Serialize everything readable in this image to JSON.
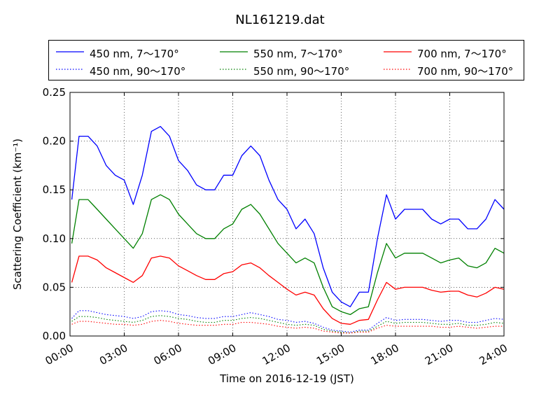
{
  "chart_data": {
    "type": "line",
    "title": "NL161219.dat",
    "xlabel": "Time on 2016-12-19 (JST)",
    "ylabel": "Scattering Coefficient (km⁻¹)",
    "xlim": [
      0,
      24
    ],
    "ylim": [
      0,
      0.25
    ],
    "grid": true,
    "legend_position": "top, above plot, 3 columns",
    "x_tick_labels": [
      "00:00",
      "03:00",
      "06:00",
      "09:00",
      "12:00",
      "15:00",
      "18:00",
      "21:00",
      "24:00"
    ],
    "y_tick_labels": [
      "0.00",
      "0.05",
      "0.10",
      "0.15",
      "0.20",
      "0.25"
    ],
    "x": [
      0.1,
      0.5,
      1.0,
      1.5,
      2.0,
      2.5,
      3.0,
      3.5,
      4.0,
      4.5,
      5.0,
      5.5,
      6.0,
      6.5,
      7.0,
      7.5,
      8.0,
      8.5,
      9.0,
      9.5,
      10.0,
      10.5,
      11.0,
      11.5,
      12.0,
      12.5,
      13.0,
      13.5,
      14.0,
      14.5,
      15.0,
      15.5,
      16.0,
      16.5,
      17.0,
      17.5,
      18.0,
      18.5,
      19.0,
      19.5,
      20.0,
      20.5,
      21.0,
      21.5,
      22.0,
      22.5,
      23.0,
      23.5,
      24.0
    ],
    "series": [
      {
        "name": "450 nm, 7～170°",
        "color": "#0000ff",
        "style": "solid",
        "values": [
          0.14,
          0.205,
          0.205,
          0.195,
          0.175,
          0.165,
          0.16,
          0.135,
          0.165,
          0.21,
          0.215,
          0.205,
          0.18,
          0.17,
          0.155,
          0.15,
          0.15,
          0.165,
          0.165,
          0.185,
          0.195,
          0.185,
          0.16,
          0.14,
          0.13,
          0.11,
          0.12,
          0.105,
          0.07,
          0.045,
          0.035,
          0.03,
          0.045,
          0.045,
          0.1,
          0.145,
          0.12,
          0.13,
          0.13,
          0.13,
          0.12,
          0.115,
          0.12,
          0.12,
          0.11,
          0.11,
          0.12,
          0.14,
          0.13
        ]
      },
      {
        "name": "550 nm, 7～170°",
        "color": "#008000",
        "style": "solid",
        "values": [
          0.095,
          0.14,
          0.14,
          0.13,
          0.12,
          0.11,
          0.1,
          0.09,
          0.105,
          0.14,
          0.145,
          0.14,
          0.125,
          0.115,
          0.105,
          0.1,
          0.1,
          0.11,
          0.115,
          0.13,
          0.135,
          0.125,
          0.11,
          0.095,
          0.085,
          0.075,
          0.08,
          0.075,
          0.05,
          0.03,
          0.025,
          0.022,
          0.028,
          0.03,
          0.065,
          0.095,
          0.08,
          0.085,
          0.085,
          0.085,
          0.08,
          0.075,
          0.078,
          0.08,
          0.072,
          0.07,
          0.075,
          0.09,
          0.085
        ]
      },
      {
        "name": "700 nm, 7～170°",
        "color": "#ff0000",
        "style": "solid",
        "values": [
          0.055,
          0.082,
          0.082,
          0.078,
          0.07,
          0.065,
          0.06,
          0.055,
          0.062,
          0.08,
          0.082,
          0.08,
          0.072,
          0.067,
          0.062,
          0.058,
          0.058,
          0.064,
          0.066,
          0.073,
          0.075,
          0.07,
          0.062,
          0.055,
          0.048,
          0.042,
          0.045,
          0.042,
          0.028,
          0.018,
          0.013,
          0.012,
          0.016,
          0.017,
          0.037,
          0.055,
          0.048,
          0.05,
          0.05,
          0.05,
          0.047,
          0.045,
          0.046,
          0.046,
          0.042,
          0.04,
          0.044,
          0.05,
          0.048
        ]
      },
      {
        "name": "450 nm, 90～170°",
        "color": "#0000ff",
        "style": "dotted",
        "values": [
          0.018,
          0.026,
          0.026,
          0.024,
          0.022,
          0.021,
          0.02,
          0.018,
          0.02,
          0.025,
          0.026,
          0.025,
          0.022,
          0.021,
          0.019,
          0.018,
          0.018,
          0.02,
          0.02,
          0.022,
          0.024,
          0.022,
          0.02,
          0.017,
          0.016,
          0.014,
          0.015,
          0.013,
          0.009,
          0.006,
          0.005,
          0.004,
          0.006,
          0.006,
          0.013,
          0.019,
          0.016,
          0.017,
          0.017,
          0.017,
          0.016,
          0.015,
          0.016,
          0.016,
          0.014,
          0.014,
          0.016,
          0.018,
          0.017
        ]
      },
      {
        "name": "550 nm, 90～170°",
        "color": "#008000",
        "style": "dotted",
        "values": [
          0.015,
          0.02,
          0.02,
          0.019,
          0.017,
          0.016,
          0.015,
          0.014,
          0.016,
          0.02,
          0.021,
          0.02,
          0.018,
          0.017,
          0.015,
          0.014,
          0.014,
          0.016,
          0.016,
          0.018,
          0.019,
          0.018,
          0.016,
          0.014,
          0.012,
          0.011,
          0.012,
          0.011,
          0.007,
          0.005,
          0.004,
          0.003,
          0.005,
          0.005,
          0.01,
          0.015,
          0.013,
          0.014,
          0.014,
          0.014,
          0.013,
          0.012,
          0.012,
          0.013,
          0.011,
          0.011,
          0.012,
          0.014,
          0.013
        ]
      },
      {
        "name": "700 nm, 90～170°",
        "color": "#ff0000",
        "style": "dotted",
        "values": [
          0.012,
          0.015,
          0.015,
          0.014,
          0.013,
          0.012,
          0.012,
          0.011,
          0.012,
          0.015,
          0.016,
          0.015,
          0.013,
          0.012,
          0.011,
          0.011,
          0.011,
          0.012,
          0.012,
          0.014,
          0.014,
          0.013,
          0.012,
          0.01,
          0.009,
          0.008,
          0.009,
          0.008,
          0.005,
          0.004,
          0.003,
          0.003,
          0.004,
          0.004,
          0.008,
          0.011,
          0.01,
          0.01,
          0.01,
          0.01,
          0.01,
          0.009,
          0.009,
          0.01,
          0.009,
          0.008,
          0.009,
          0.01,
          0.01
        ]
      }
    ]
  }
}
